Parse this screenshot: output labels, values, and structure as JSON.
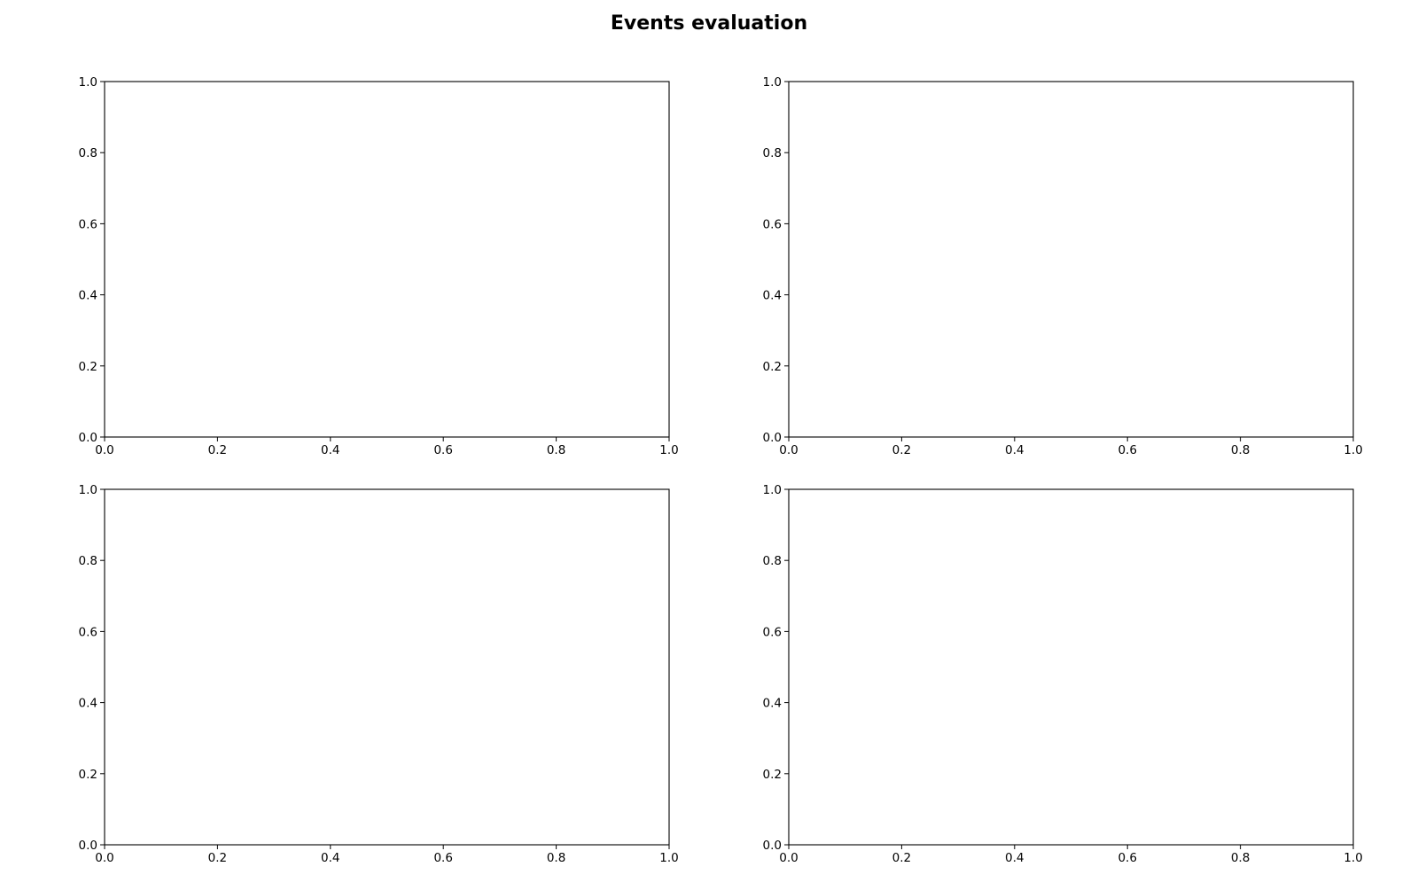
{
  "figure": {
    "title": "Events evaluation"
  },
  "chart_data": [
    {
      "type": "line",
      "title": "",
      "xlabel": "",
      "ylabel": "",
      "xlim": [
        0.0,
        1.0
      ],
      "ylim": [
        0.0,
        1.0
      ],
      "xticks": [
        "0.0",
        "0.2",
        "0.4",
        "0.6",
        "0.8",
        "1.0"
      ],
      "yticks": [
        "0.0",
        "0.2",
        "0.4",
        "0.6",
        "0.8",
        "1.0"
      ],
      "grid": false,
      "series": []
    },
    {
      "type": "line",
      "title": "",
      "xlabel": "",
      "ylabel": "",
      "xlim": [
        0.0,
        1.0
      ],
      "ylim": [
        0.0,
        1.0
      ],
      "xticks": [
        "0.0",
        "0.2",
        "0.4",
        "0.6",
        "0.8",
        "1.0"
      ],
      "yticks": [
        "0.0",
        "0.2",
        "0.4",
        "0.6",
        "0.8",
        "1.0"
      ],
      "grid": false,
      "series": []
    },
    {
      "type": "line",
      "title": "",
      "xlabel": "",
      "ylabel": "",
      "xlim": [
        0.0,
        1.0
      ],
      "ylim": [
        0.0,
        1.0
      ],
      "xticks": [
        "0.0",
        "0.2",
        "0.4",
        "0.6",
        "0.8",
        "1.0"
      ],
      "yticks": [
        "0.0",
        "0.2",
        "0.4",
        "0.6",
        "0.8",
        "1.0"
      ],
      "grid": false,
      "series": []
    },
    {
      "type": "line",
      "title": "",
      "xlabel": "",
      "ylabel": "",
      "xlim": [
        0.0,
        1.0
      ],
      "ylim": [
        0.0,
        1.0
      ],
      "xticks": [
        "0.0",
        "0.2",
        "0.4",
        "0.6",
        "0.8",
        "1.0"
      ],
      "yticks": [
        "0.0",
        "0.2",
        "0.4",
        "0.6",
        "0.8",
        "1.0"
      ],
      "grid": false,
      "series": []
    }
  ]
}
